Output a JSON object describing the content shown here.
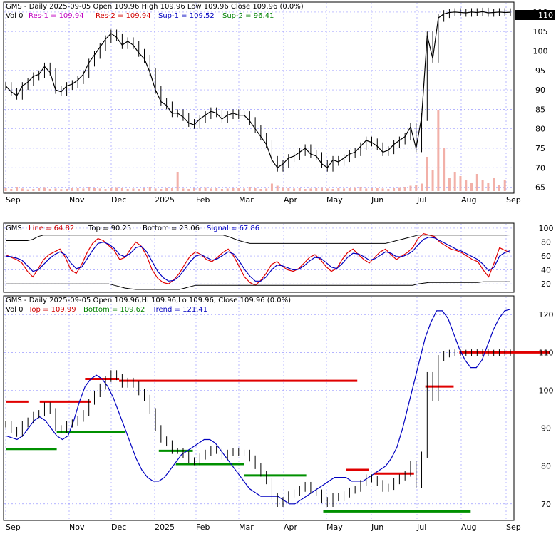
{
  "chart_data": [
    {
      "type": "line",
      "panel": "price",
      "header": {
        "line1": "GMS - Daily 2025-09-05 Open 109.96 High 109.96 Low 109.96 Close 109.96 (0.0%)",
        "vol": "Vol 0",
        "res1": "Res-1 = 109.94",
        "res2": "Res-2 = 109.94",
        "sup1": "Sup-1 = 109.52",
        "sup2": "Sup-2 = 96.41"
      },
      "last_price_label": "110",
      "x_ticks": [
        "Sep",
        "Nov",
        "Dec",
        "2025",
        "Feb",
        "Mar",
        "Apr",
        "May",
        "Jun",
        "Jul",
        "Aug",
        "Sep"
      ],
      "y_ticks": [
        65,
        70,
        75,
        80,
        85,
        90,
        95,
        100,
        105,
        110
      ],
      "ylim": [
        64,
        112
      ],
      "close": [
        91,
        89.5,
        88.5,
        91,
        92,
        93.5,
        94,
        96,
        94.5,
        90,
        89.5,
        91,
        91.5,
        92.5,
        94,
        97,
        99,
        101,
        103,
        104.5,
        103.5,
        101.5,
        102.5,
        101.5,
        99.5,
        98,
        94.5,
        90,
        87,
        86,
        84,
        84,
        83,
        81.5,
        81,
        82.5,
        83.5,
        84.5,
        84,
        82.5,
        83.5,
        84,
        83.5,
        83.5,
        82,
        80,
        78,
        76,
        72,
        70,
        71,
        72.5,
        73,
        74,
        75,
        73.5,
        73,
        71,
        70,
        72,
        71.5,
        72.5,
        73.5,
        74,
        75.5,
        77,
        76.5,
        75.5,
        74,
        74.5,
        76,
        77,
        78,
        80.5,
        75,
        83,
        104,
        98,
        108.5,
        109.5,
        109.9,
        110,
        109.9,
        109.8,
        110,
        109.9,
        110.1,
        109.8,
        109.9,
        110,
        109.9,
        109.96
      ],
      "volume": [
        0.15,
        0.1,
        0.2,
        0.12,
        0.08,
        0.1,
        0.15,
        0.18,
        0.1,
        0.12,
        0.09,
        0.1,
        0.14,
        0.16,
        0.12,
        0.2,
        0.15,
        0.12,
        0.1,
        0.14,
        0.18,
        0.15,
        0.1,
        0.12,
        0.1,
        0.16,
        0.2,
        0.12,
        0.1,
        0.14,
        0.15,
        0.9,
        0.12,
        0.1,
        0.14,
        0.16,
        0.18,
        0.12,
        0.15,
        0.1,
        0.12,
        0.14,
        0.16,
        0.12,
        0.2,
        0.15,
        0.1,
        0.12,
        0.35,
        0.25,
        0.18,
        0.15,
        0.12,
        0.14,
        0.1,
        0.12,
        0.16,
        0.18,
        0.12,
        0.1,
        0.14,
        0.12,
        0.15,
        0.18,
        0.2,
        0.12,
        0.14,
        0.15,
        0.12,
        0.1,
        0.16,
        0.18,
        0.2,
        0.25,
        0.3,
        0.35,
        1.6,
        1.0,
        3.8,
        2.0,
        0.6,
        0.9,
        0.7,
        0.5,
        0.4,
        0.8,
        0.5,
        0.4,
        0.6,
        0.3,
        0.5,
        0.0
      ]
    },
    {
      "type": "line",
      "panel": "oscillator",
      "header": {
        "title": "GMS",
        "line": "Line = 64.82",
        "top": "Top = 90.25",
        "bottom": "Bottom = 23.06",
        "signal": "Signal = 67.86"
      },
      "y_ticks": [
        20,
        40,
        60,
        80,
        100
      ],
      "ylim": [
        10,
        104
      ],
      "series": [
        {
          "values": [
            62,
            58,
            55,
            50,
            38,
            30,
            42,
            55,
            62,
            66,
            70,
            58,
            40,
            35,
            48,
            65,
            78,
            85,
            82,
            75,
            68,
            55,
            58,
            70,
            80,
            74,
            60,
            40,
            28,
            22,
            20,
            26,
            35,
            48,
            60,
            66,
            62,
            55,
            52,
            58,
            65,
            70,
            60,
            45,
            30,
            22,
            18,
            25,
            35,
            48,
            52,
            45,
            40,
            38,
            42,
            50,
            58,
            62,
            55,
            45,
            38,
            42,
            55,
            65,
            70,
            62,
            55,
            50,
            58,
            66,
            70,
            62,
            55,
            60,
            65,
            72,
            85,
            92,
            90,
            88,
            80,
            75,
            70,
            68,
            65,
            60,
            55,
            52,
            40,
            30,
            50,
            72,
            68,
            64.82
          ]
        },
        {
          "values": [
            60,
            59,
            57,
            54,
            46,
            38,
            40,
            48,
            56,
            62,
            66,
            62,
            50,
            42,
            44,
            56,
            68,
            78,
            80,
            77,
            71,
            62,
            59,
            64,
            72,
            74,
            66,
            52,
            38,
            29,
            24,
            25,
            31,
            41,
            52,
            60,
            62,
            58,
            54,
            56,
            61,
            66,
            63,
            53,
            41,
            31,
            24,
            24,
            30,
            40,
            47,
            46,
            43,
            40,
            41,
            46,
            53,
            58,
            57,
            51,
            44,
            42,
            49,
            58,
            64,
            63,
            59,
            54,
            56,
            61,
            66,
            64,
            59,
            59,
            62,
            67,
            76,
            84,
            87,
            86,
            82,
            78,
            74,
            70,
            67,
            63,
            59,
            55,
            48,
            39,
            44,
            60,
            65,
            67.86
          ]
        },
        {
          "values": [
            82,
            82,
            82,
            82,
            82,
            84,
            88,
            90,
            90,
            90,
            90,
            90,
            90,
            90,
            90,
            90,
            90,
            90,
            90,
            90,
            90,
            90,
            90,
            90,
            90,
            90,
            90,
            90,
            90,
            90,
            90,
            90,
            90,
            90,
            90,
            90,
            90,
            90,
            90,
            90,
            90,
            88,
            85,
            82,
            80,
            78,
            78,
            78,
            78,
            78,
            78,
            78,
            78,
            78,
            78,
            78,
            78,
            78,
            78,
            78,
            78,
            78,
            78,
            78,
            78,
            78,
            78,
            78,
            78,
            78,
            78,
            80,
            82,
            84,
            86,
            88,
            90,
            90,
            90,
            90,
            90,
            90,
            90,
            90,
            90,
            90,
            90,
            90,
            90,
            90,
            90,
            90,
            90,
            90.25
          ]
        },
        {
          "values": [
            20,
            20,
            20,
            20,
            20,
            20,
            20,
            20,
            20,
            20,
            20,
            20,
            20,
            20,
            20,
            20,
            20,
            20,
            20,
            20,
            18,
            16,
            14,
            13,
            12,
            12,
            12,
            12,
            12,
            12,
            12,
            12,
            12,
            14,
            16,
            18,
            18,
            18,
            18,
            18,
            18,
            18,
            18,
            18,
            18,
            18,
            18,
            18,
            18,
            18,
            18,
            18,
            18,
            18,
            18,
            18,
            18,
            18,
            18,
            18,
            18,
            18,
            18,
            18,
            18,
            18,
            18,
            18,
            18,
            18,
            18,
            18,
            18,
            18,
            18,
            18,
            20,
            21,
            22,
            22,
            22,
            22,
            22,
            22,
            22,
            22,
            22,
            22,
            23,
            23,
            23,
            23,
            23,
            23.06
          ]
        }
      ]
    },
    {
      "type": "line",
      "panel": "trend",
      "header": {
        "line1": "GMS - Daily 2025-09-05 Open 109.96,Hi 109.96,Lo 109.96, Close 109.96 (0.0%)",
        "vol": "Vol 0",
        "top": "Top = 109.99",
        "bottom": "Bottom = 109.62",
        "trend": "Trend = 121.41"
      },
      "x_ticks": [
        "Sep",
        "Nov",
        "Dec",
        "2025",
        "Feb",
        "Mar",
        "Apr",
        "May",
        "Jun",
        "Jul",
        "Aug",
        "Sep"
      ],
      "y_ticks": [
        70,
        80,
        90,
        100,
        110,
        120
      ],
      "ylim": [
        66,
        124
      ],
      "trend": [
        88,
        87.5,
        87,
        88,
        90,
        92,
        93,
        92,
        90,
        88,
        87,
        88,
        92,
        97,
        101,
        103,
        104,
        103,
        101,
        98,
        94,
        90,
        86,
        82,
        79,
        77,
        76,
        76,
        77,
        79,
        81,
        83,
        84,
        85,
        86,
        87,
        87,
        86,
        84,
        82,
        80,
        78,
        76,
        74,
        73,
        72,
        72,
        72,
        72,
        71,
        70,
        70,
        71,
        72,
        73,
        74,
        75,
        76,
        77,
        77,
        77,
        76,
        76,
        76,
        77,
        78,
        79,
        80,
        82,
        85,
        90,
        96,
        102,
        108,
        114,
        118,
        121,
        121,
        119,
        115,
        111,
        108,
        106,
        106,
        108,
        112,
        116,
        119,
        121,
        121.41
      ],
      "red_segments": [
        {
          "from": 0,
          "to": 4,
          "y": 97
        },
        {
          "from": 6,
          "to": 15,
          "y": 97
        },
        {
          "from": 14,
          "to": 20,
          "y": 103
        },
        {
          "from": 20,
          "to": 62,
          "y": 102.5
        },
        {
          "from": 60,
          "to": 64,
          "y": 79
        },
        {
          "from": 65,
          "to": 72,
          "y": 78
        },
        {
          "from": 74,
          "to": 79,
          "y": 101
        },
        {
          "from": 80,
          "to": 96,
          "y": 110
        }
      ],
      "green_segments": [
        {
          "from": 0,
          "to": 9,
          "y": 84.5
        },
        {
          "from": 9,
          "to": 21,
          "y": 89
        },
        {
          "from": 27,
          "to": 33,
          "y": 84
        },
        {
          "from": 30,
          "to": 42,
          "y": 80.5
        },
        {
          "from": 42,
          "to": 53,
          "y": 77.5
        },
        {
          "from": 56,
          "to": 82,
          "y": 68
        }
      ]
    }
  ]
}
